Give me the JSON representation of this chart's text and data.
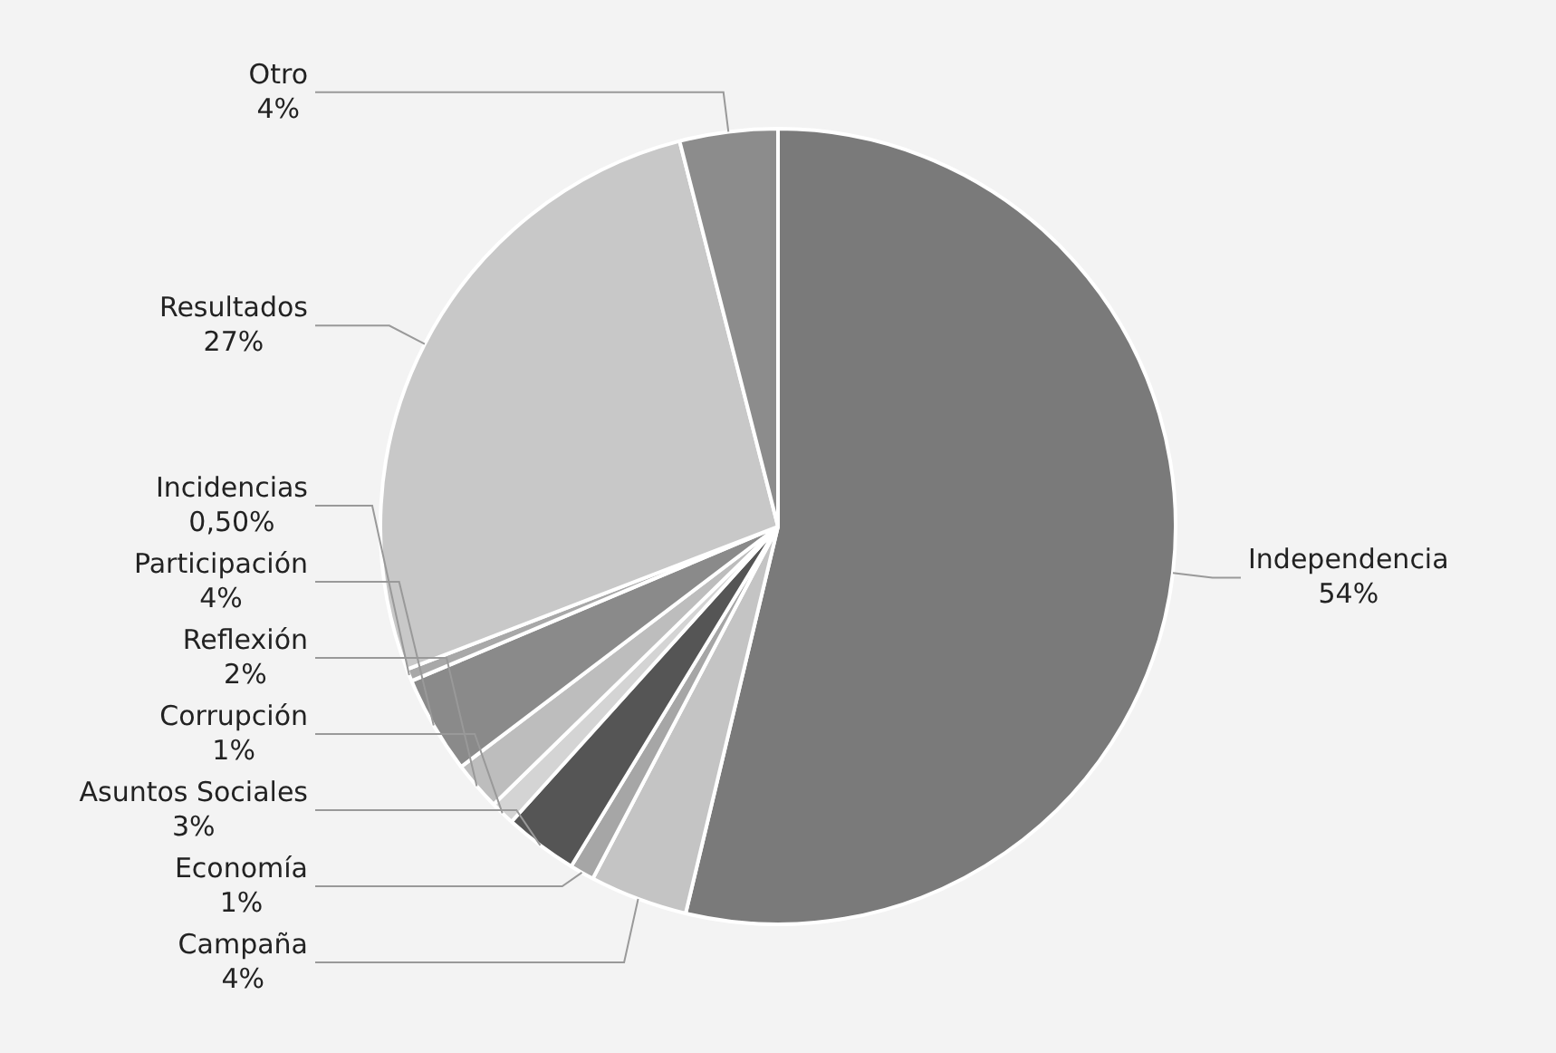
{
  "chart_data": {
    "type": "pie",
    "categories": [
      "Independencia",
      "Campaña",
      "Economía",
      "Asuntos Sociales",
      "Corrupción",
      "Reflexión",
      "Participación",
      "Incidencias",
      "Resultados",
      "Otro"
    ],
    "values": [
      54,
      4,
      1,
      3,
      1,
      2,
      4,
      0.5,
      27,
      4
    ],
    "value_labels": [
      "54%",
      "4%",
      "1%",
      "3%",
      "1%",
      "2%",
      "4%",
      "0,50%",
      "27%",
      "4%"
    ],
    "colors": [
      "#7a7a7a",
      "#c4c4c4",
      "#a6a6a6",
      "#555555",
      "#d4d4d4",
      "#bdbdbd",
      "#8a8a8a",
      "#a8a8a8",
      "#c8c8c8",
      "#8c8c8c"
    ],
    "legend": false
  }
}
